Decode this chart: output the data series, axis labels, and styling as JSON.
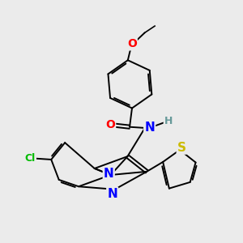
{
  "background_color": "#ebebeb",
  "atom_colors": {
    "C": "#000000",
    "N": "#0000ff",
    "O": "#ff0000",
    "S": "#ccbb00",
    "Cl": "#00bb00",
    "H": "#669999"
  },
  "bond_color": "#000000",
  "bond_width": 1.4,
  "font_size": 9,
  "figsize": [
    3.0,
    3.0
  ],
  "dpi": 100
}
